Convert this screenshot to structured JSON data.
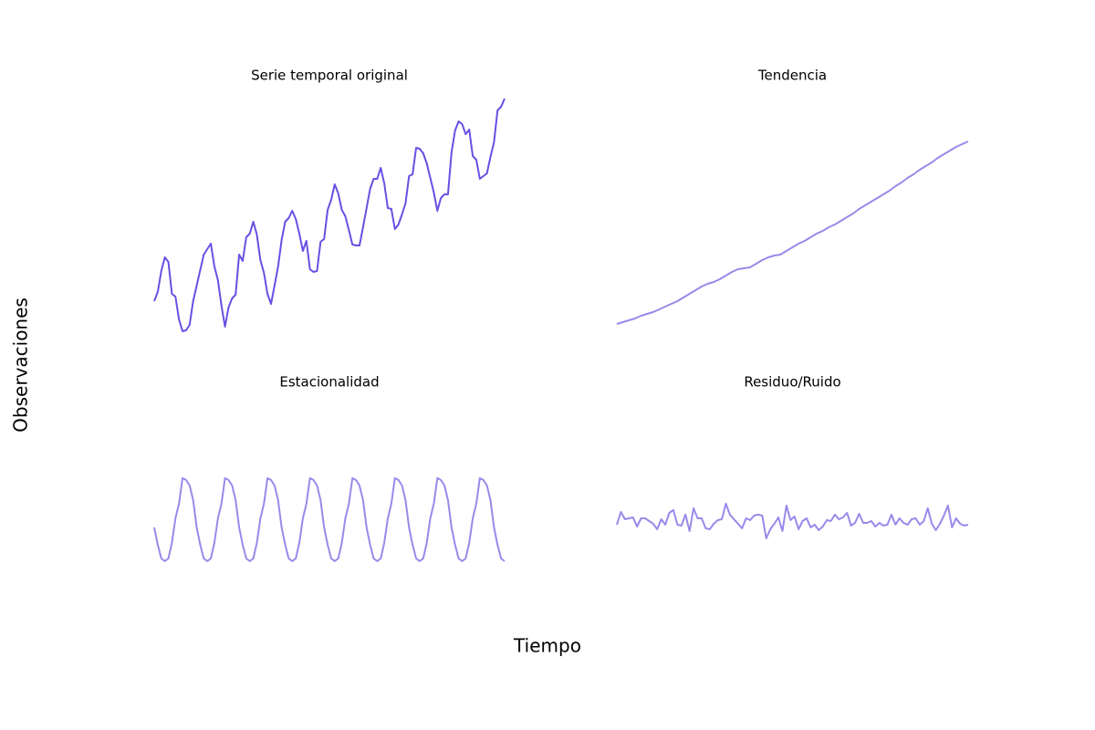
{
  "xlabel": "Tiempo",
  "ylabel": "Observaciones",
  "chart_data": [
    {
      "type": "line",
      "title": "Serie temporal original",
      "color": "#6a4fe3",
      "ylim": [
        25,
        305
      ],
      "values": [
        70,
        80,
        103,
        118,
        113,
        78,
        75,
        50,
        37,
        38,
        44,
        70,
        87,
        104,
        121,
        127,
        133,
        108,
        93,
        65,
        42,
        63,
        73,
        77,
        121,
        114,
        140,
        144,
        157,
        143,
        115,
        101,
        78,
        67,
        87,
        108,
        137,
        157,
        161,
        169,
        160,
        144,
        125,
        136,
        105,
        102,
        103,
        135,
        138,
        170,
        181,
        198,
        188,
        170,
        163,
        148,
        132,
        131,
        131,
        151,
        172,
        193,
        204,
        204,
        216,
        199,
        172,
        171,
        149,
        154,
        165,
        177,
        207,
        209,
        238,
        237,
        232,
        221,
        205,
        189,
        169,
        183,
        187,
        187,
        233,
        257,
        267,
        264,
        253,
        258,
        229,
        225,
        204,
        207,
        210,
        228,
        244,
        279,
        283,
        292
      ]
    },
    {
      "type": "line",
      "title": "Tendencia",
      "color": "#9a89ea",
      "ylim": [
        25,
        305
      ],
      "values": [
        45,
        47,
        49,
        51,
        54,
        56,
        58,
        61,
        64,
        67,
        70,
        74,
        78,
        82,
        86,
        89,
        91,
        94,
        98,
        102,
        105,
        106,
        107,
        111,
        115,
        118,
        120,
        121,
        125,
        129,
        133,
        136,
        140,
        144,
        147,
        151,
        154,
        158,
        162,
        166,
        171,
        175,
        179,
        183,
        187,
        191,
        196,
        200,
        205,
        209,
        214,
        218,
        222,
        227,
        231,
        235,
        239,
        242,
        245
      ]
    },
    {
      "type": "line",
      "title": "Estacionalidad",
      "color": "#9a89ea",
      "ylim": [
        20,
        230
      ],
      "values": [
        82,
        63,
        48,
        45,
        48,
        65,
        92,
        108,
        136,
        134,
        128,
        112,
        82,
        63,
        48,
        45,
        48,
        65,
        92,
        108,
        136,
        134,
        128,
        112,
        82,
        63,
        48,
        45,
        48,
        65,
        92,
        108,
        136,
        134,
        128,
        112,
        82,
        63,
        48,
        45,
        48,
        65,
        92,
        108,
        136,
        134,
        128,
        112,
        82,
        63,
        48,
        45,
        48,
        65,
        92,
        108,
        136,
        134,
        128,
        112,
        82,
        63,
        48,
        45,
        48,
        65,
        92,
        108,
        136,
        134,
        128,
        112,
        82,
        63,
        48,
        45,
        48,
        65,
        92,
        108,
        136,
        134,
        128,
        112,
        82,
        63,
        48,
        45,
        48,
        65,
        92,
        108,
        136,
        134,
        128,
        112,
        82,
        63,
        48,
        45
      ]
    },
    {
      "type": "line",
      "title": "Residuo/Ruido",
      "color": "#9a89ea",
      "ylim": [
        20,
        230
      ],
      "values": [
        85,
        99,
        91,
        92,
        93,
        83,
        92,
        92,
        89,
        86,
        80,
        91,
        85,
        98,
        101,
        85,
        84,
        96,
        78,
        103,
        92,
        92,
        81,
        80,
        86,
        90,
        91,
        108,
        96,
        91,
        86,
        81,
        92,
        90,
        95,
        96,
        95,
        70,
        80,
        86,
        93,
        78,
        106,
        90,
        94,
        80,
        89,
        92,
        82,
        85,
        79,
        83,
        90,
        89,
        96,
        91,
        93,
        98,
        84,
        87,
        97,
        87,
        87,
        89,
        83,
        87,
        84,
        85,
        96,
        85,
        92,
        87,
        85,
        91,
        92,
        85,
        89,
        103,
        86,
        79,
        86,
        95,
        106,
        82,
        92,
        86,
        84,
        85
      ]
    }
  ]
}
